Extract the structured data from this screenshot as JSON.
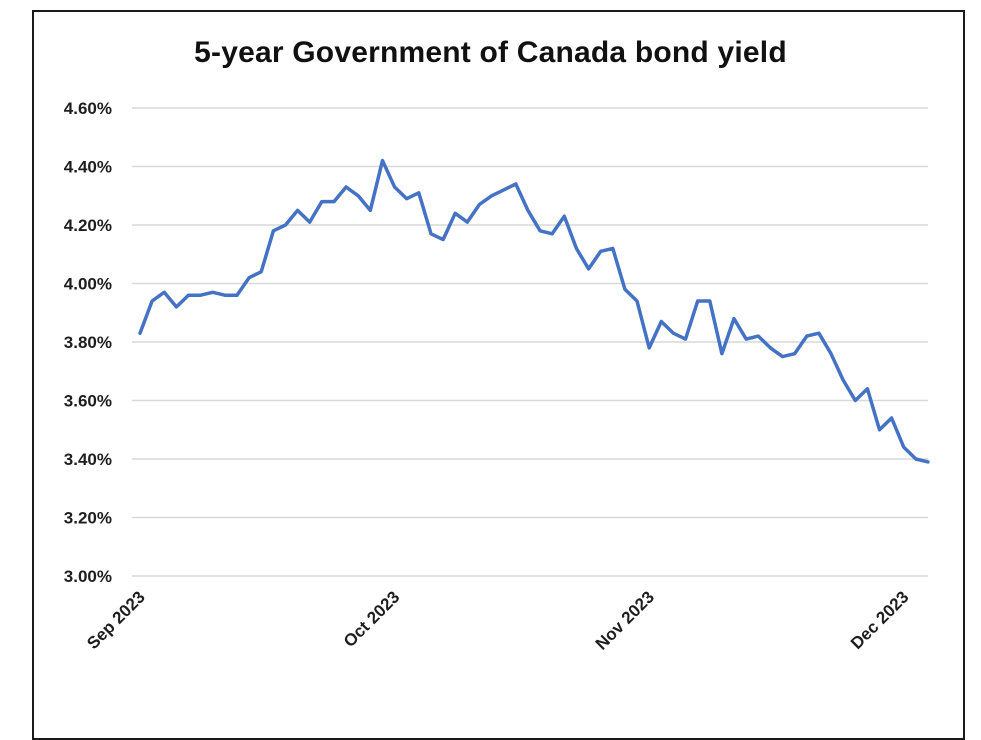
{
  "chart_data": {
    "type": "line",
    "title": "5-year Government of Canada bond yield",
    "xlabel": "",
    "ylabel": "",
    "ylim": [
      3.0,
      4.6
    ],
    "y_ticks": [
      3.0,
      3.2,
      3.4,
      3.6,
      3.8,
      4.0,
      4.2,
      4.4,
      4.6
    ],
    "y_tick_labels": [
      "3.00%",
      "3.20%",
      "3.40%",
      "3.60%",
      "3.80%",
      "4.00%",
      "4.20%",
      "4.40%",
      "4.60%"
    ],
    "x_tick_labels": [
      "Sep 2023",
      "Oct 2023",
      "Nov 2023",
      "Dec 2023"
    ],
    "x_tick_positions": [
      0,
      21,
      42,
      63
    ],
    "grid": "horizontal",
    "legend": "none",
    "series": [
      {
        "color": "#4472C4",
        "values": [
          3.83,
          3.94,
          3.97,
          3.92,
          3.96,
          3.96,
          3.97,
          3.96,
          3.96,
          4.02,
          4.04,
          4.18,
          4.2,
          4.25,
          4.21,
          4.28,
          4.28,
          4.33,
          4.3,
          4.25,
          4.42,
          4.33,
          4.29,
          4.31,
          4.17,
          4.15,
          4.24,
          4.21,
          4.27,
          4.3,
          4.32,
          4.34,
          4.25,
          4.18,
          4.17,
          4.23,
          4.12,
          4.05,
          4.11,
          4.12,
          3.98,
          3.94,
          3.78,
          3.87,
          3.83,
          3.81,
          3.94,
          3.94,
          3.76,
          3.88,
          3.81,
          3.82,
          3.78,
          3.75,
          3.76,
          3.82,
          3.83,
          3.76,
          3.67,
          3.6,
          3.64,
          3.5,
          3.54,
          3.44,
          3.4,
          3.39
        ]
      }
    ]
  }
}
